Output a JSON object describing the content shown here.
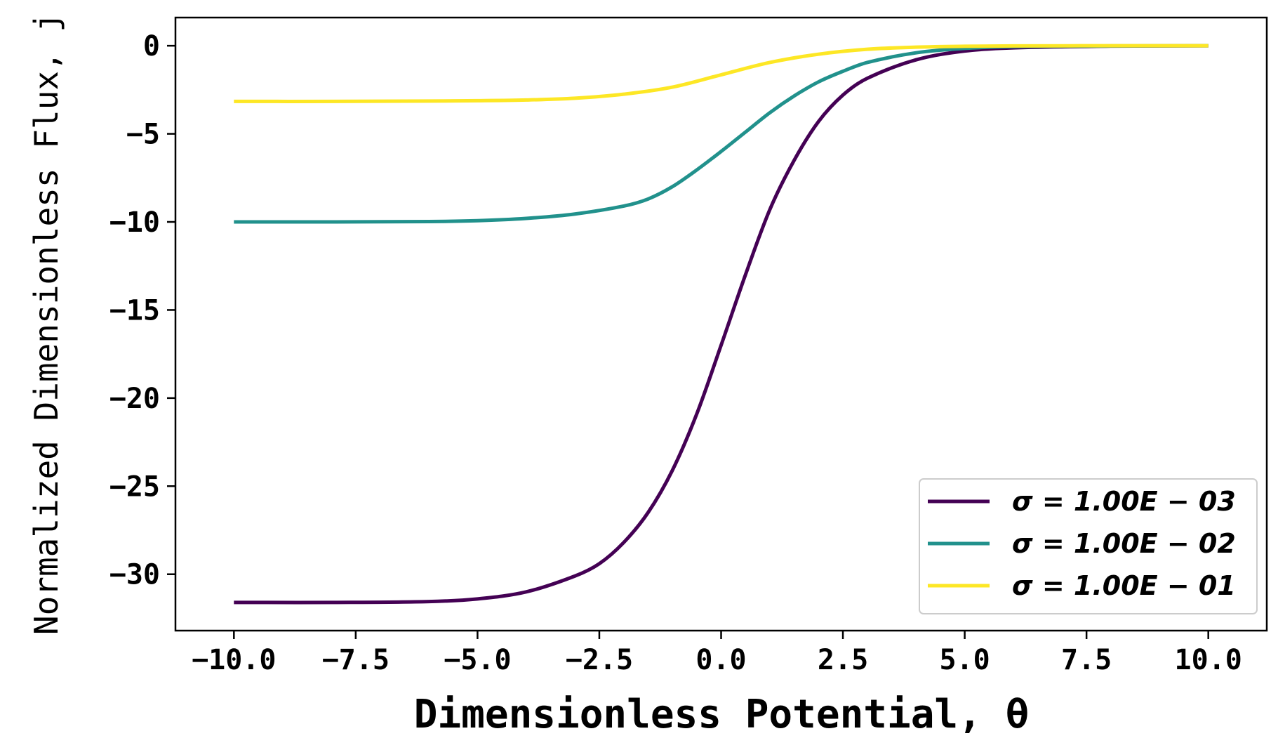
{
  "chart_data": {
    "type": "line",
    "title": "",
    "xlabel": "Dimensionless Potential, θ",
    "ylabel": "Normalized Dimensionless Flux, j",
    "xlim": [
      -11.2,
      11.2
    ],
    "ylim": [
      -33.2,
      1.6
    ],
    "xticks": [
      -10.0,
      -7.5,
      -5.0,
      -2.5,
      0.0,
      2.5,
      5.0,
      7.5,
      10.0
    ],
    "xtick_labels": [
      "−10.0",
      "−7.5",
      "−5.0",
      "−2.5",
      "0.0",
      "2.5",
      "5.0",
      "7.5",
      "10.0"
    ],
    "yticks": [
      0,
      -5,
      -10,
      -15,
      -20,
      -25,
      -30
    ],
    "ytick_labels": [
      "0",
      "−5",
      "−10",
      "−15",
      "−20",
      "−25",
      "−30"
    ],
    "grid": false,
    "legend_position": "bottom-right",
    "series": [
      {
        "name": "σ = 1.00E − 03",
        "color": "#440154",
        "x": [
          -10,
          -8,
          -6,
          -5,
          -4,
          -3,
          -2.5,
          -2,
          -1.5,
          -1,
          -0.5,
          0,
          0.5,
          1,
          1.5,
          2,
          2.5,
          3,
          4,
          5,
          6,
          8,
          10
        ],
        "y": [
          -31.6,
          -31.6,
          -31.55,
          -31.4,
          -31.0,
          -30.1,
          -29.4,
          -28.2,
          -26.5,
          -24.1,
          -20.9,
          -17.0,
          -13.0,
          -9.3,
          -6.5,
          -4.3,
          -2.8,
          -1.85,
          -0.8,
          -0.3,
          -0.12,
          -0.02,
          0
        ]
      },
      {
        "name": "σ = 1.00E − 02",
        "color": "#21918c",
        "x": [
          -10,
          -8,
          -6,
          -5,
          -4,
          -3,
          -2,
          -1.5,
          -1,
          -0.5,
          0,
          0.5,
          1,
          1.5,
          2,
          2.5,
          3,
          4,
          5,
          6,
          8,
          10
        ],
        "y": [
          -10.0,
          -10.0,
          -9.98,
          -9.93,
          -9.8,
          -9.55,
          -9.1,
          -8.7,
          -8.0,
          -7.05,
          -6.0,
          -4.9,
          -3.8,
          -2.85,
          -2.05,
          -1.45,
          -0.95,
          -0.4,
          -0.15,
          -0.05,
          -0.01,
          0
        ]
      },
      {
        "name": "σ = 1.00E − 01",
        "color": "#fde725",
        "x": [
          -10,
          -8,
          -6,
          -5,
          -4,
          -3,
          -2,
          -1,
          0,
          1,
          2,
          3,
          4,
          5,
          6,
          8,
          10
        ],
        "y": [
          -3.16,
          -3.16,
          -3.14,
          -3.12,
          -3.08,
          -2.98,
          -2.75,
          -2.35,
          -1.65,
          -0.95,
          -0.48,
          -0.2,
          -0.08,
          -0.03,
          -0.01,
          0,
          0
        ]
      }
    ]
  }
}
